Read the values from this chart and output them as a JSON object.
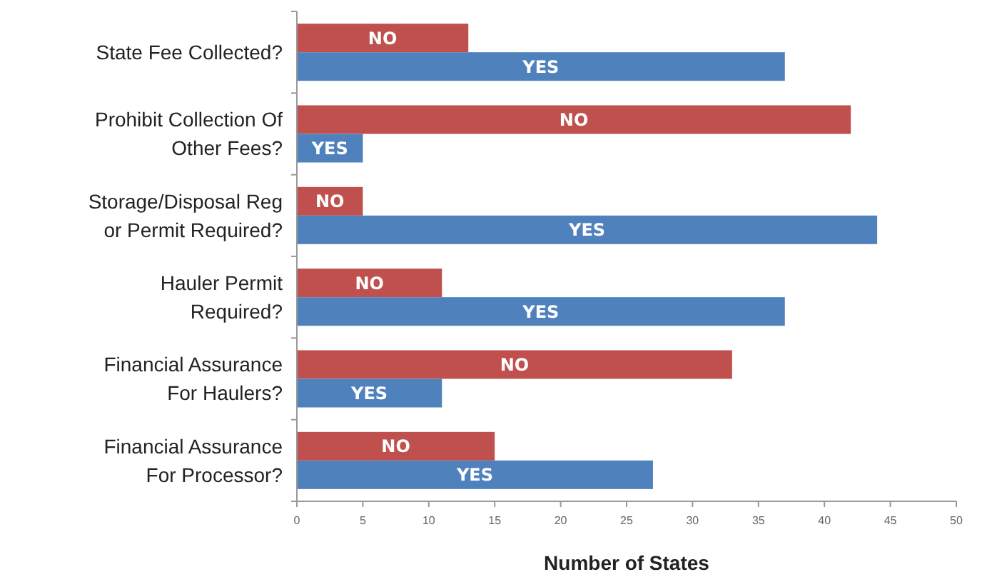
{
  "chart_data": {
    "type": "bar",
    "orientation": "horizontal",
    "xlabel": "Number of States",
    "categories": [
      "State Fee Collected?",
      "Prohibit Collection Of Other Fees?",
      "Storage/Disposal Reg or Permit Required?",
      "Hauler Permit Required?",
      "Financial Assurance For Haulers?",
      "Financial Assurance For Processor?"
    ],
    "series": [
      {
        "name": "NO",
        "color": "#c0504d",
        "values": [
          13,
          42,
          5,
          11,
          33,
          15
        ]
      },
      {
        "name": "YES",
        "color": "#4f81bd",
        "values": [
          37,
          5,
          44,
          37,
          11,
          27
        ]
      }
    ],
    "xlim": [
      0,
      50
    ],
    "xticks": [
      0,
      5,
      10,
      15,
      20,
      25,
      30,
      35,
      40,
      45,
      50
    ],
    "grid": false,
    "legend": false
  }
}
